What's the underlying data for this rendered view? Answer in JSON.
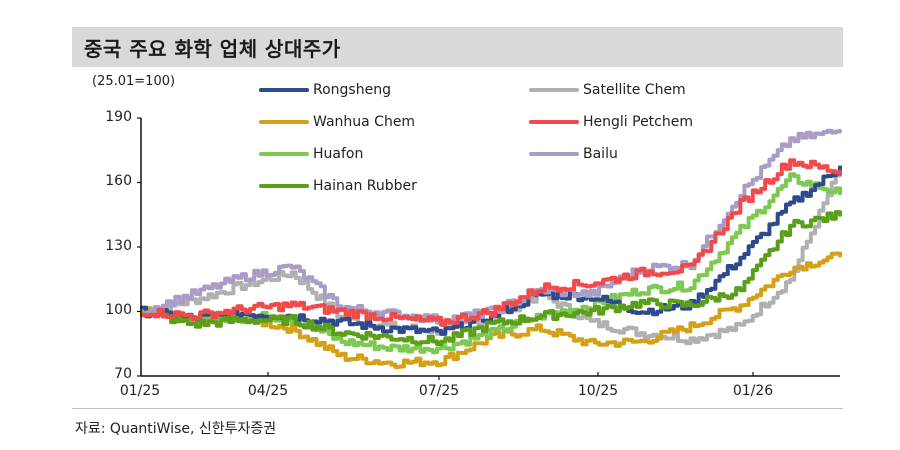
{
  "title": "중국 주요 화학 업체 상대주가",
  "unit_label": "(25.01=100)",
  "source": "자료: QuantiWise, 신한투자증권",
  "chart_data": {
    "type": "line",
    "title": "중국 주요 화학 업체 상대주가",
    "subtitle": "(25.01=100)",
    "xlabel": "",
    "ylabel": "",
    "ylim": [
      70,
      190
    ],
    "yticks": [
      70,
      100,
      130,
      160,
      190
    ],
    "xticks": [
      "01/25",
      "04/25",
      "07/25",
      "10/25",
      "01/26"
    ],
    "grid": false,
    "legend_position": "top, inside, 2 columns",
    "x": [
      "01/25",
      "02/25",
      "03/25",
      "04/25",
      "05/25",
      "06/25",
      "07/25",
      "08/25",
      "09/25",
      "10/25",
      "11/25",
      "12/25",
      "01/26",
      "02/26",
      "03/26"
    ],
    "series": [
      {
        "name": "Rongsheng",
        "color": "#2e4a8c",
        "values": [
          100,
          97,
          99,
          98,
          95,
          92,
          90,
          98,
          108,
          107,
          100,
          103,
          125,
          150,
          167
        ]
      },
      {
        "name": "Satellite Chem",
        "color": "#b0b0b0",
        "values": [
          100,
          105,
          112,
          118,
          97,
          93,
          91,
          97,
          108,
          95,
          90,
          87,
          93,
          115,
          167
        ]
      },
      {
        "name": "Wanhua Chem",
        "color": "#d4a017",
        "values": [
          100,
          96,
          97,
          92,
          79,
          76,
          77,
          88,
          92,
          85,
          86,
          93,
          103,
          120,
          126
        ]
      },
      {
        "name": "Hengli Petchem",
        "color": "#f04a4a",
        "values": [
          100,
          98,
          101,
          103,
          100,
          97,
          95,
          100,
          111,
          113,
          118,
          120,
          150,
          170,
          165
        ]
      },
      {
        "name": "Huafon",
        "color": "#7dc850",
        "values": [
          100,
          96,
          98,
          97,
          86,
          83,
          83,
          90,
          98,
          103,
          110,
          112,
          138,
          162,
          155
        ]
      },
      {
        "name": "Bailu",
        "color": "#a99cc7",
        "values": [
          100,
          108,
          116,
          121,
          102,
          99,
          96,
          100,
          110,
          108,
          120,
          122,
          155,
          180,
          184
        ]
      },
      {
        "name": "Hainan Rubber",
        "color": "#5a9e1a",
        "values": [
          100,
          94,
          96,
          96,
          90,
          88,
          86,
          94,
          98,
          100,
          104,
          103,
          110,
          140,
          145
        ]
      }
    ]
  },
  "legend": [
    {
      "label": "Rongsheng",
      "color": "#2e4a8c"
    },
    {
      "label": "Wanhua Chem",
      "color": "#d4a017"
    },
    {
      "label": "Huafon",
      "color": "#7dc850"
    },
    {
      "label": "Hainan Rubber",
      "color": "#5a9e1a"
    },
    {
      "label": "Satellite Chem",
      "color": "#b0b0b0"
    },
    {
      "label": "Hengli Petchem",
      "color": "#f04a4a"
    },
    {
      "label": "Bailu",
      "color": "#a99cc7"
    }
  ],
  "y_ticks": [
    "190",
    "160",
    "130",
    "100",
    "70"
  ],
  "x_ticks": [
    "01/25",
    "04/25",
    "07/25",
    "10/25",
    "01/26"
  ]
}
